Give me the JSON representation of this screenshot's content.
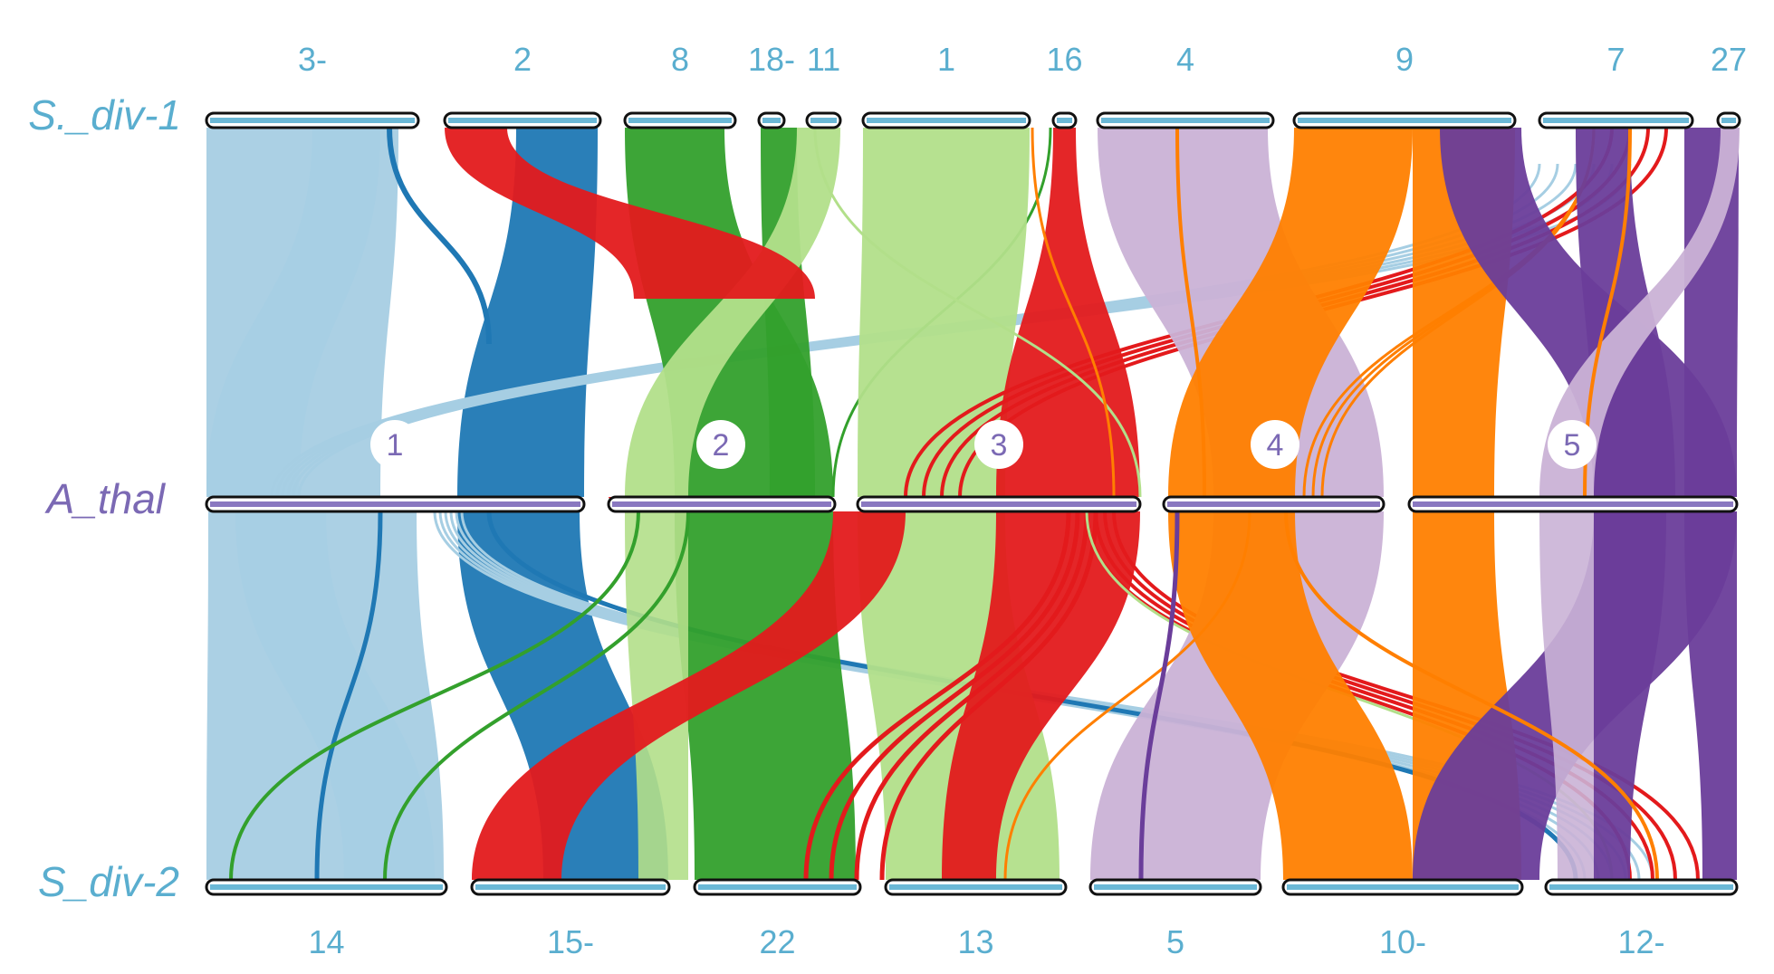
{
  "genomes": {
    "top": "S._div-1",
    "middle": "A_thal",
    "bottom": "S_div-2"
  },
  "top_chromosomes": [
    "3-",
    "2",
    "8",
    "18-",
    "11",
    "1",
    "16",
    "4",
    "9",
    "7",
    "27"
  ],
  "middle_chromosomes": [
    "1",
    "2",
    "3",
    "4",
    "5"
  ],
  "bottom_chromosomes": [
    "14",
    "15-",
    "22",
    "13",
    "5",
    "10-",
    "12-"
  ],
  "colors": {
    "top_label": "#5aaecf",
    "middle_label": "#7b69b4",
    "bottom_label": "#5aaecf",
    "chr_fill_top": "#6bb8d6",
    "chr_fill_middle": "#8a78c0",
    "chr1": "#a6cee3",
    "chr1_alt": "#1f78b4",
    "chr2": "#b2df8a",
    "chr2_alt": "#33a02c",
    "chr3": "#b2df8a",
    "chr3_alt": "#e31a1c",
    "chr4": "#cab2d6",
    "chr4_alt": "#ff7f00",
    "chr5": "#cab2d6",
    "chr5_alt": "#6a3d9a"
  }
}
